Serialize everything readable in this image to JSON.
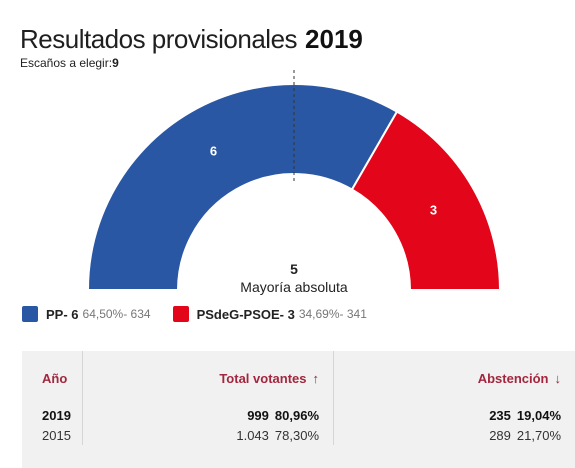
{
  "header": {
    "title": "Resultados provisionales",
    "year": "2019",
    "seats_label": "Escaños a elegir:",
    "seats_value": "9"
  },
  "chart_data": {
    "type": "pie",
    "style": "half-donut parliament",
    "total_seats": 9,
    "majority": {
      "value": "5",
      "label": "Mayoría absoluta"
    },
    "series": [
      {
        "name": "PP",
        "seats": 6,
        "percent": 64.5,
        "votes": 634,
        "color": "#2a57a4"
      },
      {
        "name": "PSdeG-PSOE",
        "seats": 3,
        "percent": 34.69,
        "votes": 341,
        "color": "#e3051a"
      }
    ]
  },
  "legend": [
    {
      "label": "PP- 6",
      "detail": "64,50%- 634",
      "color": "#2a57a4"
    },
    {
      "label": "PSdeG-PSOE- 3",
      "detail": "34,69%- 341",
      "color": "#e3051a"
    }
  ],
  "table": {
    "headers": {
      "year": "Año",
      "total": "Total votantes",
      "total_arrow": "↑",
      "abstention": "Abstención",
      "abstention_arrow": "↓"
    },
    "rows": [
      {
        "year": "2019",
        "total_votes": "999",
        "total_pct": "80,96%",
        "abst_votes": "235",
        "abst_pct": "19,04%"
      },
      {
        "year": "2015",
        "total_votes": "1.043",
        "total_pct": "78,30%",
        "abst_votes": "289",
        "abst_pct": "21,70%"
      }
    ]
  }
}
